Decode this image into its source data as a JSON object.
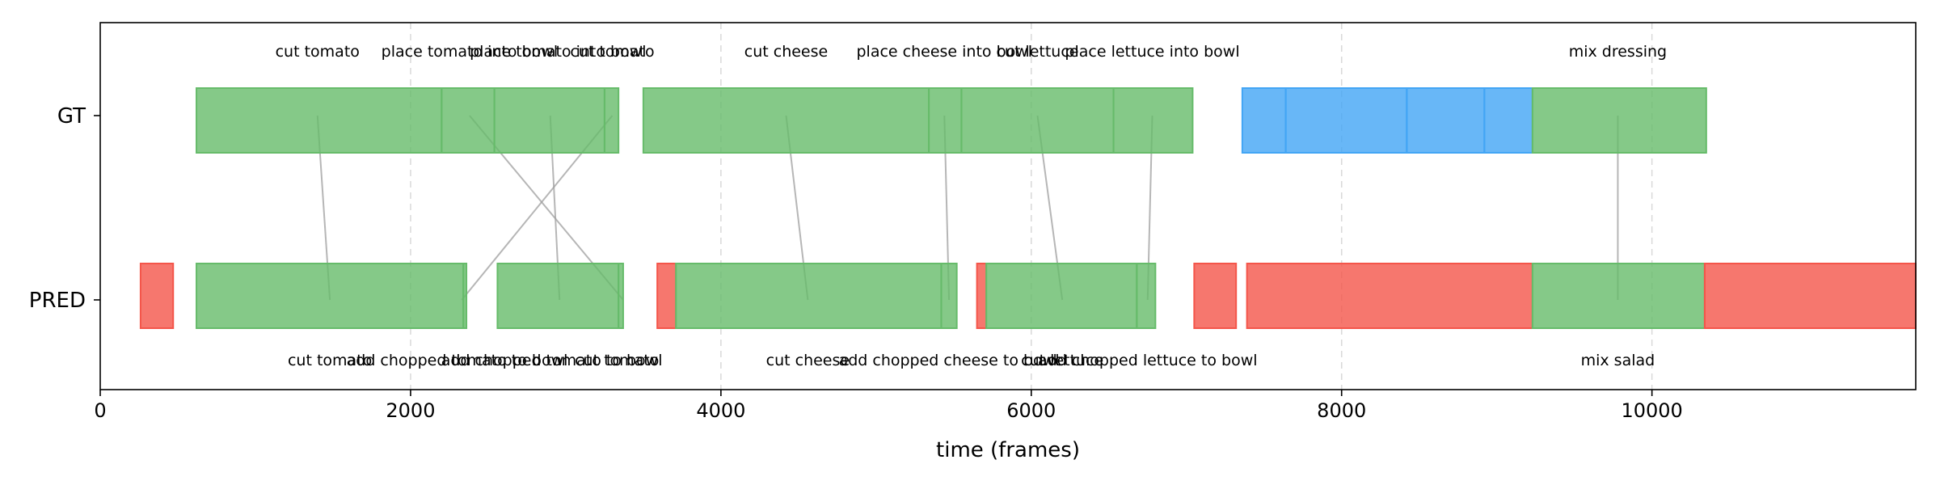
{
  "chart_data": {
    "type": "timeline",
    "xlabel": "time (frames)",
    "xlim": [
      0,
      11700
    ],
    "xticks": [
      0,
      2000,
      4000,
      6000,
      8000,
      10000
    ],
    "grid": "vertical dashed at x ticks",
    "rows": [
      "GT",
      "PRED"
    ],
    "colors": {
      "matched": "#66bb6a",
      "gt_unmatched": "#42a5f5",
      "pred_unmatched": "#f4554a",
      "link": "#9e9e9e"
    },
    "gt_segments": [
      {
        "start": 620,
        "end": 2200,
        "status": "matched"
      },
      {
        "start": 2200,
        "end": 2540,
        "status": "matched"
      },
      {
        "start": 2540,
        "end": 3250,
        "status": "matched"
      },
      {
        "start": 3250,
        "end": 3340,
        "status": "matched"
      },
      {
        "start": 3500,
        "end": 5340,
        "status": "matched"
      },
      {
        "start": 5340,
        "end": 5550,
        "status": "matched"
      },
      {
        "start": 5550,
        "end": 6530,
        "status": "matched"
      },
      {
        "start": 6530,
        "end": 7040,
        "status": "matched"
      },
      {
        "start": 7360,
        "end": 7640,
        "status": "unmatched"
      },
      {
        "start": 7640,
        "end": 8420,
        "status": "unmatched"
      },
      {
        "start": 8420,
        "end": 8920,
        "status": "unmatched"
      },
      {
        "start": 8920,
        "end": 9230,
        "status": "unmatched"
      },
      {
        "start": 9230,
        "end": 10350,
        "status": "matched"
      }
    ],
    "pred_segments": [
      {
        "start": 260,
        "end": 470,
        "status": "unmatched"
      },
      {
        "start": 620,
        "end": 2340,
        "status": "matched"
      },
      {
        "start": 2340,
        "end": 2360,
        "status": "matched"
      },
      {
        "start": 2560,
        "end": 3340,
        "status": "matched"
      },
      {
        "start": 3340,
        "end": 3370,
        "status": "matched"
      },
      {
        "start": 3590,
        "end": 3710,
        "status": "unmatched"
      },
      {
        "start": 3710,
        "end": 5420,
        "status": "matched"
      },
      {
        "start": 5420,
        "end": 5520,
        "status": "matched"
      },
      {
        "start": 5650,
        "end": 5710,
        "status": "unmatched"
      },
      {
        "start": 5710,
        "end": 6680,
        "status": "matched"
      },
      {
        "start": 6680,
        "end": 6800,
        "status": "matched"
      },
      {
        "start": 7050,
        "end": 7320,
        "status": "unmatched"
      },
      {
        "start": 7390,
        "end": 9230,
        "status": "unmatched"
      },
      {
        "start": 9230,
        "end": 10340,
        "status": "matched"
      },
      {
        "start": 10340,
        "end": 11700,
        "status": "unmatched"
      }
    ],
    "gt_labels": [
      {
        "x": 1400,
        "text": "cut tomato"
      },
      {
        "x": 2380,
        "text": "place tomato into bowl"
      },
      {
        "x": 2950,
        "text": "place tomato into bowl"
      },
      {
        "x": 3300,
        "text": "cut tomato"
      },
      {
        "x": 4420,
        "text": "cut cheese"
      },
      {
        "x": 5440,
        "text": "place cheese into bowl"
      },
      {
        "x": 6040,
        "text": "cut lettuce"
      },
      {
        "x": 6780,
        "text": "place lettuce into bowl"
      },
      {
        "x": 9780,
        "text": "mix dressing"
      }
    ],
    "pred_labels": [
      {
        "x": 1480,
        "text": "cut tomato"
      },
      {
        "x": 2300,
        "text": "add chopped tomato to bowl"
      },
      {
        "x": 2910,
        "text": "add chopped tomato to bowl"
      },
      {
        "x": 3330,
        "text": "cut tomato"
      },
      {
        "x": 4560,
        "text": "cut cheese"
      },
      {
        "x": 5470,
        "text": "add chopped cheese to bowl"
      },
      {
        "x": 6200,
        "text": "cut lettuce"
      },
      {
        "x": 6750,
        "text": "add chopped lettuce to bowl"
      },
      {
        "x": 9780,
        "text": "mix salad"
      }
    ],
    "links": [
      {
        "gt_x": 1400,
        "pred_x": 1480
      },
      {
        "gt_x": 2380,
        "pred_x": 3370
      },
      {
        "gt_x": 2900,
        "pred_x": 2960
      },
      {
        "gt_x": 3300,
        "pred_x": 2330
      },
      {
        "gt_x": 4420,
        "pred_x": 4560
      },
      {
        "gt_x": 5440,
        "pred_x": 5470
      },
      {
        "gt_x": 6040,
        "pred_x": 6200
      },
      {
        "gt_x": 6780,
        "pred_x": 6750
      },
      {
        "gt_x": 9780,
        "pred_x": 9780
      }
    ]
  }
}
